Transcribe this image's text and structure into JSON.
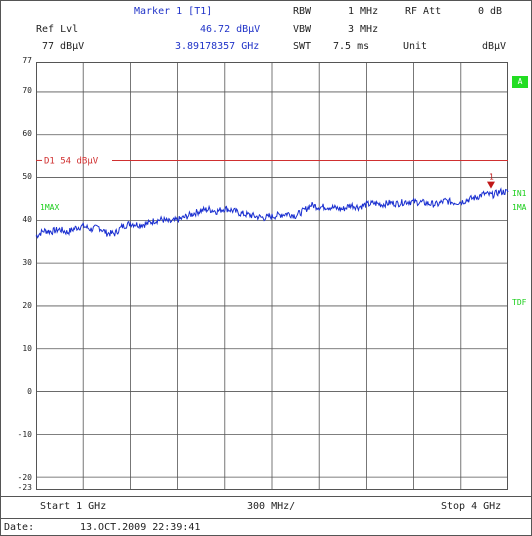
{
  "header": {
    "marker_title": "Marker 1 [T1]",
    "rbw_label": "RBW",
    "rbw_value": "1 MHz",
    "rf_att_label": "RF Att",
    "rf_att_value": "0 dB",
    "ref_lvl_label": "Ref Lvl",
    "marker_level": "46.72 dBµV",
    "vbw_label": "VBW",
    "vbw_value": "3 MHz",
    "ref_lvl_value": "77 dBµV",
    "marker_freq": "3.89178357 GHz",
    "swt_label": "SWT",
    "swt_value": "7.5 ms",
    "unit_label": "Unit",
    "unit_value": "dBµV"
  },
  "side_labels": {
    "a_badge": "A",
    "in1": "IN1",
    "one_ma": "1MA",
    "tdf": "TDF",
    "one_max": "1MAX"
  },
  "marker_flag": "1",
  "footer": {
    "start": "Start 1 GHz",
    "span_per_div": "300 MHz/",
    "stop": "Stop 4 GHz",
    "date_label": "Date:",
    "date_value": "13.OCT.2009  22:39:41"
  },
  "colors": {
    "trace": "#1a2fd0",
    "display_line": "#d03030",
    "marker": "#c01818",
    "side_label": "#1dcf1d",
    "grid": "#555555"
  },
  "chart_data": {
    "type": "line",
    "title": "",
    "xlabel": "",
    "ylabel": "",
    "x_range_ghz": [
      1,
      4
    ],
    "ylim": [
      -23,
      77
    ],
    "y_ticks": [
      77,
      70,
      60,
      50,
      40,
      30,
      20,
      10,
      0,
      -10,
      -20,
      -23
    ],
    "grid": true,
    "display_line": {
      "label": "D1 54 dBµV",
      "value": 54
    },
    "marker": {
      "label": "1",
      "x_ghz": 3.89178357,
      "y": 46.72
    },
    "series": [
      {
        "x_ghz": [
          1.0,
          1.05,
          1.1,
          1.15,
          1.2,
          1.25,
          1.3,
          1.35,
          1.4,
          1.45,
          1.5,
          1.55,
          1.6,
          1.65,
          1.7,
          1.75,
          1.8,
          1.85,
          1.9,
          1.95,
          2.0,
          2.05,
          2.1,
          2.15,
          2.2,
          2.25,
          2.3,
          2.35,
          2.4,
          2.45,
          2.5,
          2.55,
          2.6,
          2.65,
          2.7,
          2.75,
          2.8,
          2.85,
          2.9,
          2.95,
          3.0,
          3.05,
          3.1,
          3.15,
          3.2,
          3.25,
          3.3,
          3.35,
          3.4,
          3.45,
          3.5,
          3.55,
          3.6,
          3.65,
          3.7,
          3.75,
          3.8,
          3.85,
          3.9,
          3.95,
          4.0
        ],
        "values": [
          36.3,
          37.6,
          37.4,
          37.9,
          37.2,
          38.2,
          38.7,
          37.9,
          38.4,
          37.0,
          36.9,
          38.6,
          39.3,
          39.0,
          39.1,
          39.9,
          40.2,
          39.6,
          40.1,
          40.8,
          41.6,
          42.3,
          42.6,
          42.1,
          42.8,
          42.3,
          41.6,
          41.3,
          40.9,
          40.6,
          40.9,
          41.3,
          41.6,
          41.1,
          42.2,
          43.6,
          43.1,
          43.2,
          42.9,
          42.6,
          43.6,
          43.1,
          43.7,
          44.0,
          43.7,
          44.1,
          43.9,
          44.4,
          44.3,
          44.2,
          43.9,
          43.7,
          44.6,
          44.2,
          44.3,
          44.9,
          45.4,
          46.2,
          45.9,
          46.7,
          46.6
        ]
      }
    ]
  }
}
